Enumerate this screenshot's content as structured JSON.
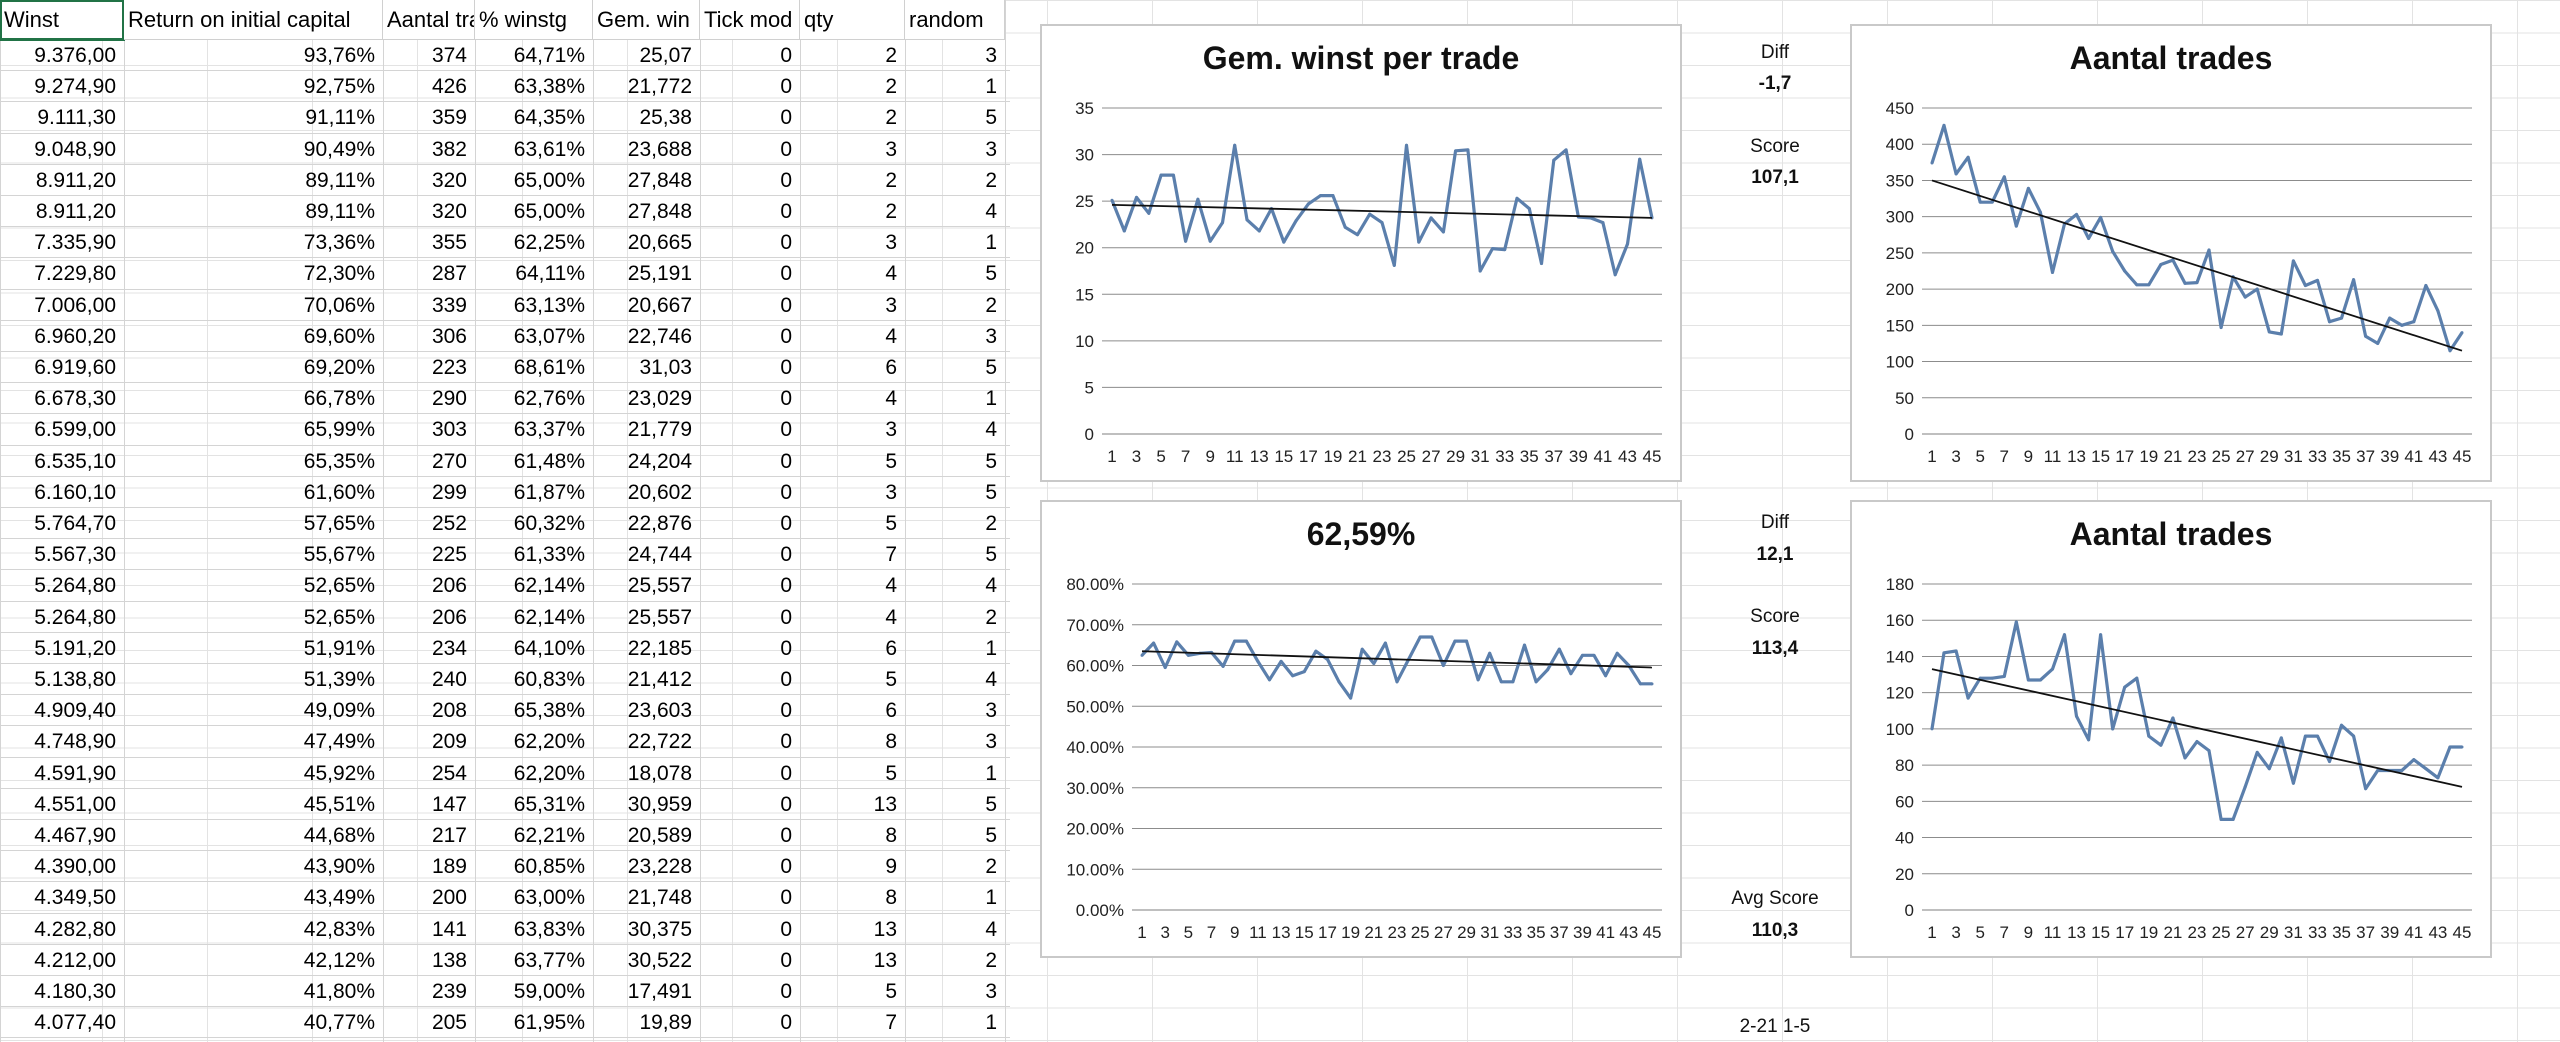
{
  "headers": [
    "Winst",
    "Return on initial capital",
    "Aantal tra",
    "% winstg",
    "Gem. win",
    "Tick mod",
    "qty",
    "random"
  ],
  "rows": [
    [
      "9.376,00",
      "93,76%",
      "374",
      "64,71%",
      "25,07",
      "0",
      "2",
      "3"
    ],
    [
      "9.274,90",
      "92,75%",
      "426",
      "63,38%",
      "21,772",
      "0",
      "2",
      "1"
    ],
    [
      "9.111,30",
      "91,11%",
      "359",
      "64,35%",
      "25,38",
      "0",
      "2",
      "5"
    ],
    [
      "9.048,90",
      "90,49%",
      "382",
      "63,61%",
      "23,688",
      "0",
      "3",
      "3"
    ],
    [
      "8.911,20",
      "89,11%",
      "320",
      "65,00%",
      "27,848",
      "0",
      "2",
      "2"
    ],
    [
      "8.911,20",
      "89,11%",
      "320",
      "65,00%",
      "27,848",
      "0",
      "2",
      "4"
    ],
    [
      "7.335,90",
      "73,36%",
      "355",
      "62,25%",
      "20,665",
      "0",
      "3",
      "1"
    ],
    [
      "7.229,80",
      "72,30%",
      "287",
      "64,11%",
      "25,191",
      "0",
      "4",
      "5"
    ],
    [
      "7.006,00",
      "70,06%",
      "339",
      "63,13%",
      "20,667",
      "0",
      "3",
      "2"
    ],
    [
      "6.960,20",
      "69,60%",
      "306",
      "63,07%",
      "22,746",
      "0",
      "4",
      "3"
    ],
    [
      "6.919,60",
      "69,20%",
      "223",
      "68,61%",
      "31,03",
      "0",
      "6",
      "5"
    ],
    [
      "6.678,30",
      "66,78%",
      "290",
      "62,76%",
      "23,029",
      "0",
      "4",
      "1"
    ],
    [
      "6.599,00",
      "65,99%",
      "303",
      "63,37%",
      "21,779",
      "0",
      "3",
      "4"
    ],
    [
      "6.535,10",
      "65,35%",
      "270",
      "61,48%",
      "24,204",
      "0",
      "5",
      "5"
    ],
    [
      "6.160,10",
      "61,60%",
      "299",
      "61,87%",
      "20,602",
      "0",
      "3",
      "5"
    ],
    [
      "5.764,70",
      "57,65%",
      "252",
      "60,32%",
      "22,876",
      "0",
      "5",
      "2"
    ],
    [
      "5.567,30",
      "55,67%",
      "225",
      "61,33%",
      "24,744",
      "0",
      "7",
      "5"
    ],
    [
      "5.264,80",
      "52,65%",
      "206",
      "62,14%",
      "25,557",
      "0",
      "4",
      "4"
    ],
    [
      "5.264,80",
      "52,65%",
      "206",
      "62,14%",
      "25,557",
      "0",
      "4",
      "2"
    ],
    [
      "5.191,20",
      "51,91%",
      "234",
      "64,10%",
      "22,185",
      "0",
      "6",
      "1"
    ],
    [
      "5.138,80",
      "51,39%",
      "240",
      "60,83%",
      "21,412",
      "0",
      "5",
      "4"
    ],
    [
      "4.909,40",
      "49,09%",
      "208",
      "65,38%",
      "23,603",
      "0",
      "6",
      "3"
    ],
    [
      "4.748,90",
      "47,49%",
      "209",
      "62,20%",
      "22,722",
      "0",
      "8",
      "3"
    ],
    [
      "4.591,90",
      "45,92%",
      "254",
      "62,20%",
      "18,078",
      "0",
      "5",
      "1"
    ],
    [
      "4.551,00",
      "45,51%",
      "147",
      "65,31%",
      "30,959",
      "0",
      "13",
      "5"
    ],
    [
      "4.467,90",
      "44,68%",
      "217",
      "62,21%",
      "20,589",
      "0",
      "8",
      "5"
    ],
    [
      "4.390,00",
      "43,90%",
      "189",
      "60,85%",
      "23,228",
      "0",
      "9",
      "2"
    ],
    [
      "4.349,50",
      "43,49%",
      "200",
      "63,00%",
      "21,748",
      "0",
      "8",
      "1"
    ],
    [
      "4.282,80",
      "42,83%",
      "141",
      "63,83%",
      "30,375",
      "0",
      "13",
      "4"
    ],
    [
      "4.212,00",
      "42,12%",
      "138",
      "63,77%",
      "30,522",
      "0",
      "13",
      "2"
    ],
    [
      "4.180,30",
      "41,80%",
      "239",
      "59,00%",
      "17,491",
      "0",
      "5",
      "3"
    ],
    [
      "4.077,40",
      "40,77%",
      "205",
      "61,95%",
      "19,89",
      "0",
      "7",
      "1"
    ]
  ],
  "side": {
    "diff1_label": "Diff",
    "diff1_value": "-1,7",
    "score1_label": "Score",
    "score1_value": "107,1",
    "diff2_label": "Diff",
    "diff2_value": "12,1",
    "score2_label": "Score",
    "score2_value": "113,4",
    "avg_label": "Avg Score",
    "avg_value": "110,3",
    "note": "2-21 1-5"
  },
  "chart_data": [
    {
      "type": "line",
      "title": "Gem. winst per trade",
      "ylim": [
        0,
        35
      ],
      "yticks": [
        "0",
        "5",
        "10",
        "15",
        "20",
        "25",
        "30",
        "35"
      ],
      "xticks": [
        "1",
        "3",
        "5",
        "7",
        "9",
        "11",
        "13",
        "15",
        "17",
        "19",
        "21",
        "23",
        "25",
        "27",
        "29",
        "31",
        "33",
        "35",
        "37",
        "39",
        "41",
        "43",
        "45"
      ],
      "trendline": [
        24.6,
        23.2
      ],
      "values": [
        25.1,
        21.8,
        25.4,
        23.7,
        27.8,
        27.8,
        20.7,
        25.2,
        20.7,
        22.7,
        31.0,
        23.0,
        21.8,
        24.2,
        20.6,
        22.9,
        24.7,
        25.6,
        25.6,
        22.2,
        21.4,
        23.6,
        22.7,
        18.1,
        31.0,
        20.6,
        23.2,
        21.7,
        30.4,
        30.5,
        17.5,
        19.9,
        19.8,
        25.3,
        24.2,
        18.3,
        29.4,
        30.5,
        23.3,
        23.2,
        22.7,
        17.1,
        20.4,
        29.5,
        23.2
      ],
      "color": "#5b7fac",
      "grid": true
    },
    {
      "type": "line",
      "title": "Aantal trades",
      "ylim": [
        0,
        450
      ],
      "yticks": [
        "0",
        "50",
        "100",
        "150",
        "200",
        "250",
        "300",
        "350",
        "400",
        "450"
      ],
      "xticks": [
        "1",
        "3",
        "5",
        "7",
        "9",
        "11",
        "13",
        "15",
        "17",
        "19",
        "21",
        "23",
        "25",
        "27",
        "29",
        "31",
        "33",
        "35",
        "37",
        "39",
        "41",
        "43",
        "45"
      ],
      "trendline": [
        350,
        115
      ],
      "values": [
        374,
        426,
        359,
        382,
        320,
        320,
        355,
        287,
        339,
        306,
        223,
        290,
        303,
        270,
        299,
        252,
        225,
        206,
        206,
        234,
        240,
        208,
        209,
        254,
        147,
        217,
        189,
        200,
        141,
        138,
        239,
        205,
        212,
        155,
        160,
        213,
        135,
        125,
        160,
        150,
        155,
        205,
        170,
        115,
        140
      ],
      "color": "#5b7fac",
      "grid": true
    },
    {
      "type": "line",
      "title": "62,59%",
      "ylim": [
        0,
        80
      ],
      "yticks": [
        "0.00%",
        "10.00%",
        "20.00%",
        "30.00%",
        "40.00%",
        "50.00%",
        "60.00%",
        "70.00%",
        "80.00%"
      ],
      "xticks": [
        "1",
        "3",
        "5",
        "7",
        "9",
        "11",
        "13",
        "15",
        "17",
        "19",
        "21",
        "23",
        "25",
        "27",
        "29",
        "31",
        "33",
        "35",
        "37",
        "39",
        "41",
        "43",
        "45"
      ],
      "trendline": [
        63.5,
        59.5
      ],
      "values": [
        62.5,
        65.5,
        59.5,
        65.8,
        62.5,
        63.0,
        63.2,
        59.8,
        66.0,
        66.0,
        61.0,
        56.5,
        61.0,
        57.5,
        58.5,
        63.5,
        61.5,
        56.0,
        52.0,
        64.0,
        60.5,
        65.5,
        56.0,
        61.5,
        67.0,
        67.0,
        60.0,
        66.0,
        66.0,
        56.5,
        63.0,
        56.0,
        56.0,
        65.0,
        56.0,
        59.0,
        64.0,
        58.0,
        62.5,
        62.5,
        57.5,
        63.0,
        60.0,
        55.5,
        55.5
      ],
      "color": "#5b7fac",
      "grid": true
    },
    {
      "type": "line",
      "title": "Aantal trades",
      "ylim": [
        0,
        180
      ],
      "yticks": [
        "0",
        "20",
        "40",
        "60",
        "80",
        "100",
        "120",
        "140",
        "160",
        "180"
      ],
      "xticks": [
        "1",
        "3",
        "5",
        "7",
        "9",
        "11",
        "13",
        "15",
        "17",
        "19",
        "21",
        "23",
        "25",
        "27",
        "29",
        "31",
        "33",
        "35",
        "37",
        "39",
        "41",
        "43",
        "45"
      ],
      "trendline": [
        133,
        68
      ],
      "values": [
        100,
        142,
        143,
        117,
        128,
        128,
        129,
        159,
        127,
        127,
        133,
        152,
        107,
        94,
        152,
        100,
        123,
        128,
        96,
        91,
        106,
        84,
        93,
        88,
        50,
        50,
        68,
        87,
        78,
        95,
        70,
        96,
        96,
        82,
        102,
        96,
        67,
        77,
        77,
        77,
        83,
        78,
        73,
        90,
        90
      ],
      "color": "#5b7fac",
      "grid": true
    }
  ]
}
